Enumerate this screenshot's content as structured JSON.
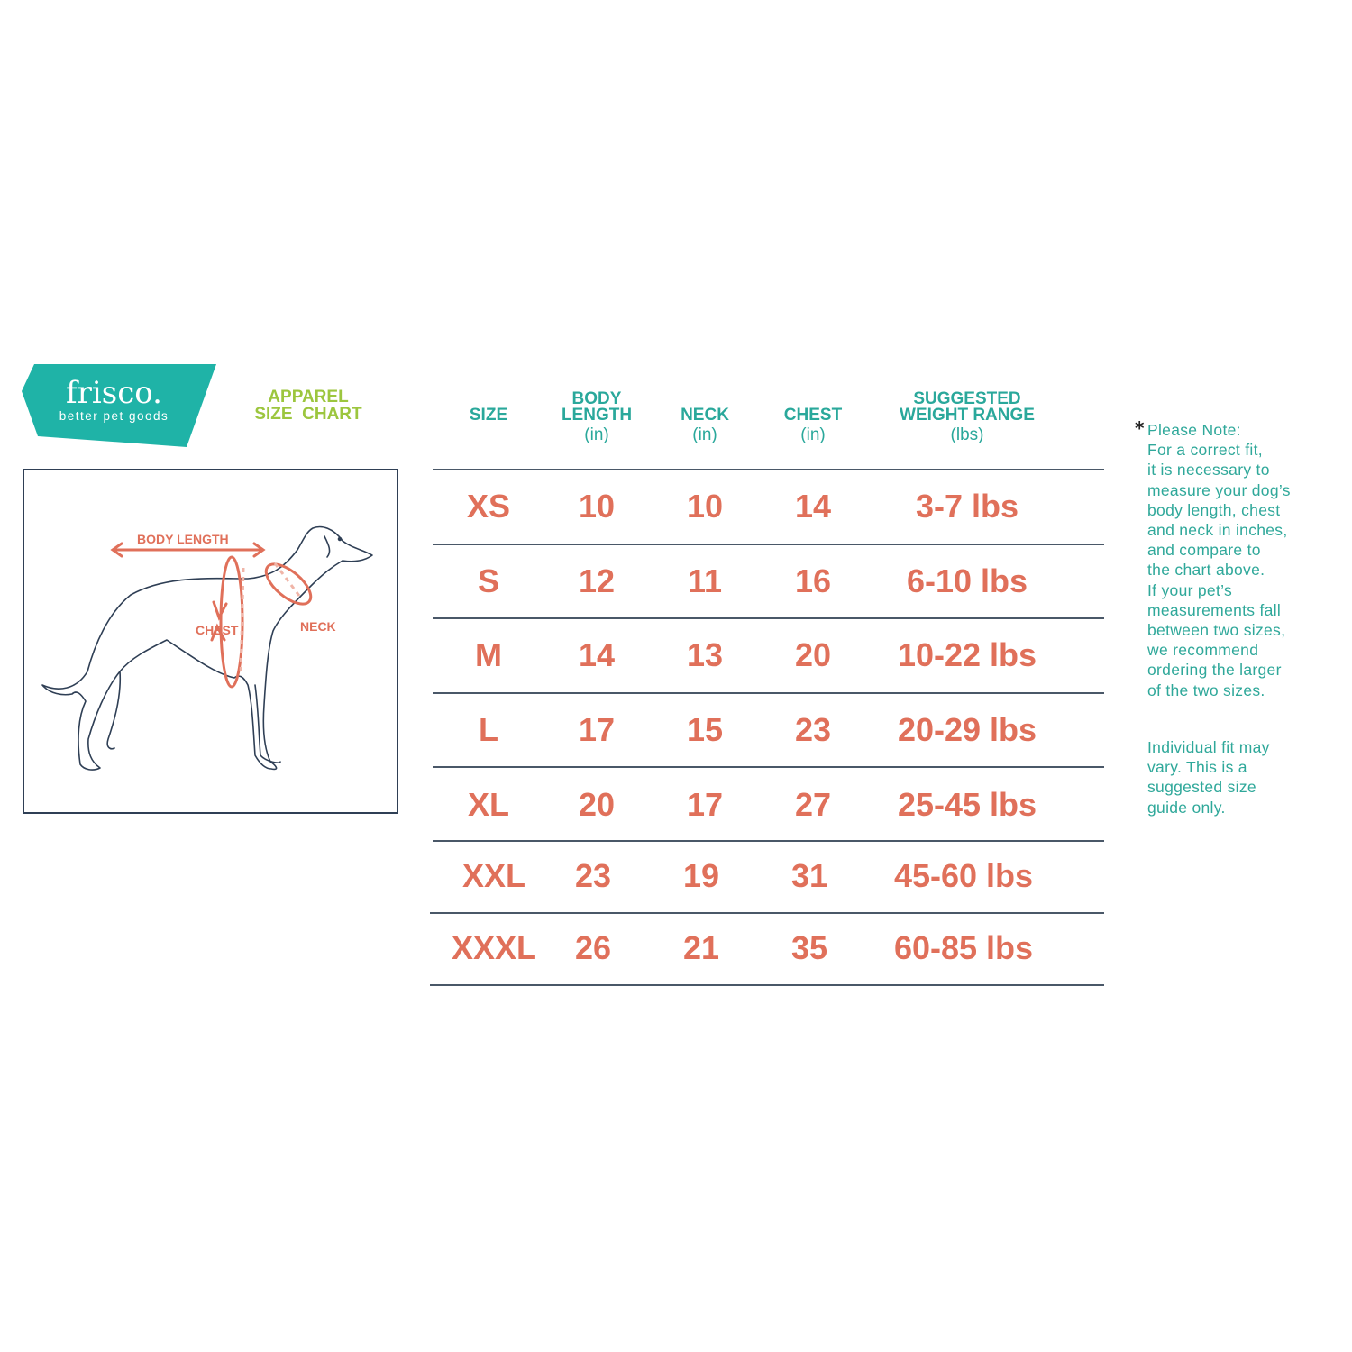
{
  "brand": {
    "name": "frisco.",
    "tagline": "better pet goods",
    "color": "#1fb3a7"
  },
  "title": {
    "line1": "APPAREL",
    "line2": "SIZE  CHART",
    "color": "#9cc63e"
  },
  "diagram": {
    "labels": {
      "body_length": "BODY LENGTH",
      "chest": "CHEST",
      "neck": "NECK"
    },
    "accent": "#e0705a"
  },
  "table": {
    "headers": [
      {
        "label": "SIZE",
        "unit": ""
      },
      {
        "label": "BODY\nLENGTH",
        "unit": "(in)"
      },
      {
        "label": "NECK",
        "unit": "(in)"
      },
      {
        "label": "CHEST",
        "unit": "(in)"
      },
      {
        "label": "SUGGESTED\nWEIGHT RANGE",
        "unit": "(lbs)"
      }
    ],
    "rows": [
      [
        "XS",
        "10",
        "10",
        "14",
        "3-7 lbs"
      ],
      [
        "S",
        "12",
        "11",
        "16",
        "6-10 lbs"
      ],
      [
        "M",
        "14",
        "13",
        "20",
        "10-22 lbs"
      ],
      [
        "L",
        "17",
        "15",
        "23",
        "20-29 lbs"
      ],
      [
        "XL",
        "20",
        "17",
        "27",
        "25-45 lbs"
      ],
      [
        "XXL",
        "23",
        "19",
        "31",
        "45-60 lbs"
      ],
      [
        "XXXL",
        "26",
        "21",
        "35",
        "60-85 lbs"
      ]
    ],
    "header_color": "#2aa89b",
    "value_color": "#e0705a"
  },
  "note": {
    "asterisk": "*",
    "lines": [
      "Please Note:",
      "For a correct fit,",
      "it is necessary to",
      "measure your dog’s",
      "body length, chest",
      "and neck in inches,",
      "and compare to",
      "the chart above.",
      "If your pet’s",
      "measurements fall",
      "between two sizes,",
      "we recommend",
      "ordering the larger",
      "of the two sizes."
    ],
    "disclaimer": [
      "Individual fit may",
      "vary. This is a",
      "suggested size",
      "guide only."
    ]
  }
}
